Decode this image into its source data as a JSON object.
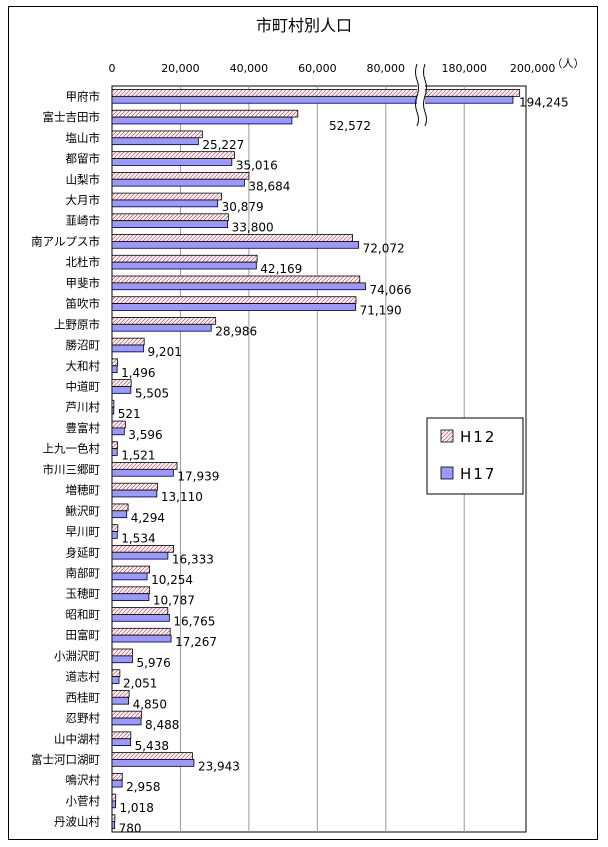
{
  "chart_data": {
    "type": "bar",
    "orientation": "horizontal",
    "title": "市町村別人口",
    "unit": "（人）",
    "x_ticks": [
      "0",
      "20,000",
      "40,000",
      "60,000",
      "80,000",
      "180,000",
      "200,000"
    ],
    "axis_break": "between 80,000 and 180,000",
    "xlim": [
      0,
      200000
    ],
    "grid": true,
    "legend_position": "right",
    "categories": [
      "甲府市",
      "富士吉田市",
      "塩山市",
      "都留市",
      "山梨市",
      "大月市",
      "韮崎市",
      "南アルプス市",
      "北杜市",
      "甲斐市",
      "笛吹市",
      "上野原市",
      "勝沼町",
      "大和村",
      "中道町",
      "芦川村",
      "豊富村",
      "上九一色村",
      "市川三郷町",
      "増穂町",
      "鰍沢町",
      "早川町",
      "身延町",
      "南部町",
      "玉穂町",
      "昭和町",
      "田富町",
      "小淵沢町",
      "道志村",
      "西桂町",
      "忍野村",
      "山中湖村",
      "富士河口湖町",
      "鳴沢村",
      "小菅村",
      "丹波山村"
    ],
    "series": [
      {
        "name": "H12",
        "color": "#ffccdd",
        "pattern": "diagonal-hatch",
        "values": [
          196200,
          54300,
          26400,
          35800,
          40000,
          32000,
          34000,
          70300,
          42400,
          72400,
          71300,
          30300,
          9400,
          1600,
          5600,
          560,
          3900,
          1600,
          19000,
          13300,
          4700,
          1700,
          18000,
          11000,
          11000,
          16300,
          17000,
          6000,
          2300,
          5000,
          8600,
          5500,
          23500,
          3000,
          1100,
          850
        ]
      },
      {
        "name": "H17",
        "color": "#9999ff",
        "pattern": "solid",
        "values": [
          194245,
          52572,
          25227,
          35016,
          38684,
          30879,
          33800,
          72072,
          42169,
          74066,
          71190,
          28986,
          9201,
          1496,
          5505,
          521,
          3596,
          1521,
          17939,
          13110,
          4294,
          1534,
          16333,
          10254,
          10787,
          16765,
          17267,
          5976,
          2051,
          4850,
          8488,
          5438,
          23943,
          2958,
          1018,
          780
        ]
      }
    ],
    "data_labels_series": "H17",
    "data_labels": [
      "194,245",
      "52,572",
      "25,227",
      "35,016",
      "38,684",
      "30,879",
      "33,800",
      "72,072",
      "42,169",
      "74,066",
      "71,190",
      "28,986",
      "9,201",
      "1,496",
      "5,505",
      "521",
      "3,596",
      "1,521",
      "17,939",
      "13,110",
      "4,294",
      "1,534",
      "16,333",
      "10,254",
      "10,787",
      "16,765",
      "17,267",
      "5,976",
      "2,051",
      "4,850",
      "8,488",
      "5,438",
      "23,943",
      "2,958",
      "1,018",
      "780"
    ]
  }
}
